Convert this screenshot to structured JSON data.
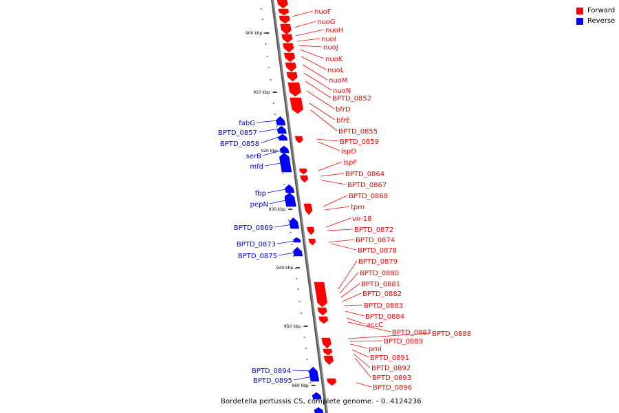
{
  "caption": "Bordetella pertussis CS, complete genome. - 0..4124236",
  "colors": {
    "forward": "#ff0000",
    "reverse": "#0000ff",
    "backbone": "#888888",
    "tick": "#000000"
  },
  "legend": [
    {
      "label": "Forward",
      "color": "#ff0000"
    },
    {
      "label": "Reverse",
      "color": "#0000ff"
    }
  ],
  "ticks": [
    "900 kbp",
    "910 kbp",
    "920 kbp",
    "930 kbp",
    "940 kbp",
    "950 kbp",
    "960 kbp"
  ],
  "forward_labels": [
    "nuoF",
    "nuoG",
    "nuoH",
    "nuoI",
    "nuoJ",
    "nuoK",
    "nuoL",
    "nuoM",
    "nuoN",
    "BPTD_0852",
    "bfrD",
    "bfrE",
    "BPTD_0855",
    "BPTD_0859",
    "ispD",
    "ispF",
    "BPTD_0864",
    "BPTD_0867",
    "BPTD_0868",
    "tpm",
    "vir-18",
    "BPTD_0872",
    "BPTD_0874",
    "BPTD_0878",
    "BPTD_0879",
    "BPTD_0880",
    "BPTD_0881",
    "BPTD_0882",
    "BPTD_0883",
    "BPTD_0884",
    "accC",
    "BPTD_0887",
    "BPTD_0888",
    "BPTD_0889",
    "pmi",
    "BPTD_0891",
    "BPTD_0892",
    "BPTD_0893",
    "BPTD_0896"
  ],
  "reverse_labels": [
    "fabG",
    "BPTD_0857",
    "BPTD_0858",
    "serB",
    "mfd",
    "fbp",
    "pepN",
    "BPTD_0869",
    "BPTD_0873",
    "BPTD_0875",
    "BPTD_0894",
    "BPTD_0895"
  ]
}
